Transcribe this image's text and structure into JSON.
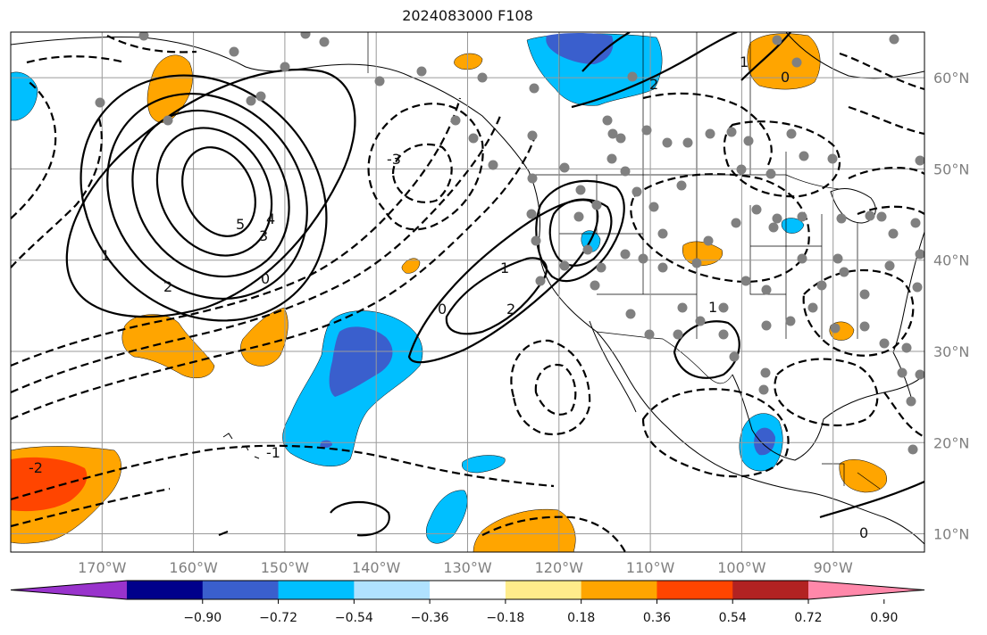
{
  "title": "2024083000 F108",
  "map": {
    "projection": "cylindrical",
    "lon_range": [
      -180,
      -80
    ],
    "lat_range": [
      8,
      65
    ],
    "lon_ticks": [
      {
        "lon": -170,
        "label": "170°W"
      },
      {
        "lon": -160,
        "label": "160°W"
      },
      {
        "lon": -150,
        "label": "150°W"
      },
      {
        "lon": -140,
        "label": "140°W"
      },
      {
        "lon": -130,
        "label": "130°W"
      },
      {
        "lon": -120,
        "label": "120°W"
      },
      {
        "lon": -110,
        "label": "110°W"
      },
      {
        "lon": -100,
        "label": "100°W"
      },
      {
        "lon": -90,
        "label": "90°W"
      }
    ],
    "lat_ticks": [
      {
        "lat": 10,
        "label": "10°N"
      },
      {
        "lat": 20,
        "label": "20°N"
      },
      {
        "lat": 30,
        "label": "30°N"
      },
      {
        "lat": 40,
        "label": "40°N"
      },
      {
        "lat": 50,
        "label": "50°N"
      },
      {
        "lat": 60,
        "label": "60°N"
      }
    ],
    "gridlines": true,
    "contour_labels": [
      "5",
      "4",
      "3",
      "2",
      "1",
      "0",
      "-1",
      "-2",
      "-3",
      "2",
      "1",
      "0",
      "1",
      "2",
      "0",
      "1",
      "0"
    ]
  },
  "colorbar": {
    "ticks": [
      "−0.90",
      "−0.72",
      "−0.54",
      "−0.36",
      "−0.18",
      "0.18",
      "0.36",
      "0.54",
      "0.72",
      "0.90"
    ],
    "colors": [
      "#9933cc",
      "#00008b",
      "#3a5fcd",
      "#00bfff",
      "#b0e2ff",
      "#ffffff",
      "#ffec8b",
      "#ffa500",
      "#ff4500",
      "#b22222",
      "#ff88aa"
    ],
    "extend": "both"
  }
}
